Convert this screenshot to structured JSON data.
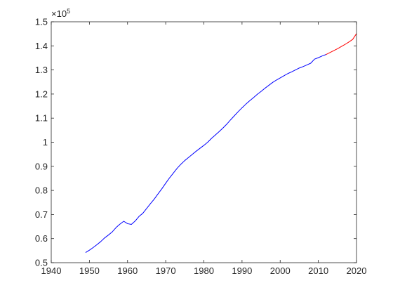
{
  "chart_data": {
    "type": "line",
    "title": "",
    "xlabel": "",
    "ylabel": "",
    "xlim": [
      1940,
      2020
    ],
    "ylim": [
      0.5,
      1.5
    ],
    "x_ticks": [
      1940,
      1950,
      1960,
      1970,
      1980,
      1990,
      2000,
      2010,
      2020
    ],
    "y_ticks": [
      0.5,
      0.6,
      0.7,
      0.8,
      0.9,
      1,
      1.1,
      1.2,
      1.3,
      1.4,
      1.5
    ],
    "x_tick_labels": [
      "1940",
      "1950",
      "1960",
      "1970",
      "1980",
      "1990",
      "2000",
      "2010",
      "2020"
    ],
    "y_tick_labels": [
      "0.5",
      "0.6",
      "0.7",
      "0.8",
      "0.9",
      "1",
      "1.1",
      "1.2",
      "1.3",
      "1.4",
      "1.5"
    ],
    "y_exponent": {
      "base": "×10",
      "power": "5"
    },
    "grid": false,
    "series": [
      {
        "color": "#0000ff",
        "x": [
          1949,
          1950,
          1951,
          1952,
          1953,
          1954,
          1955,
          1956,
          1957,
          1958,
          1959,
          1960,
          1961,
          1962,
          1963,
          1964,
          1965,
          1966,
          1967,
          1968,
          1969,
          1970,
          1971,
          1972,
          1973,
          1974,
          1975,
          1976,
          1977,
          1978,
          1979,
          1980,
          1981,
          1982,
          1983,
          1984,
          1985,
          1986,
          1987,
          1988,
          1989,
          1990,
          1991,
          1992,
          1993,
          1994,
          1995,
          1996,
          1997,
          1998,
          1999,
          2000,
          2001,
          2002,
          2003,
          2004,
          2005,
          2006,
          2007,
          2008,
          2009,
          2010,
          2011,
          2012
        ],
        "y": [
          0.542,
          0.552,
          0.563,
          0.575,
          0.588,
          0.603,
          0.615,
          0.628,
          0.646,
          0.66,
          0.672,
          0.662,
          0.659,
          0.673,
          0.692,
          0.705,
          0.725,
          0.745,
          0.764,
          0.786,
          0.807,
          0.83,
          0.852,
          0.872,
          0.892,
          0.909,
          0.924,
          0.937,
          0.95,
          0.963,
          0.975,
          0.987,
          1.0,
          1.016,
          1.03,
          1.044,
          1.059,
          1.075,
          1.093,
          1.11,
          1.127,
          1.143,
          1.158,
          1.172,
          1.185,
          1.199,
          1.211,
          1.224,
          1.236,
          1.248,
          1.258,
          1.267,
          1.276,
          1.285,
          1.292,
          1.3,
          1.308,
          1.314,
          1.321,
          1.328,
          1.345,
          1.351,
          1.358,
          1.364
        ]
      },
      {
        "color": "#ff0000",
        "x": [
          2012,
          2013,
          2014,
          2015,
          2016,
          2017,
          2018,
          2019,
          2020
        ],
        "y": [
          1.364,
          1.372,
          1.38,
          1.388,
          1.397,
          1.406,
          1.416,
          1.427,
          1.451
        ]
      }
    ]
  }
}
